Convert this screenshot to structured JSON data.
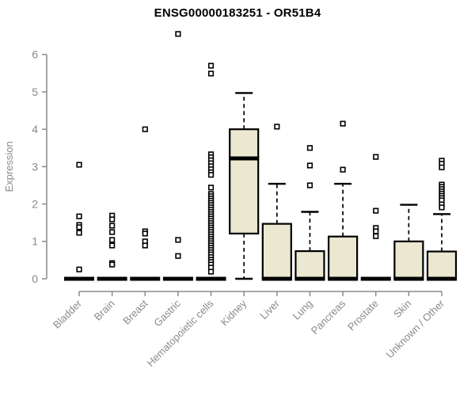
{
  "title": "ENSG00000183251 - OR51B4",
  "colors": {
    "background": "#ffffff",
    "box_fill": "#ece7d0",
    "box_stroke": "#000000",
    "median": "#000000",
    "whisker": "#000000",
    "outlier_stroke": "#000000",
    "outlier_fill": "#ffffff",
    "axis": "#8c8c8c",
    "tick_label": "#8a8a8a",
    "title": "#000000"
  },
  "chart_data": {
    "type": "boxplot",
    "title": "ENSG00000183251 - OR51B4",
    "xlabel": "",
    "ylabel": "Expression",
    "ylim": [
      0,
      6.6
    ],
    "yticks": [
      0,
      1,
      2,
      3,
      4,
      5,
      6
    ],
    "grid": false,
    "legend": "none",
    "categories": [
      "Bladder",
      "Brain",
      "Breast",
      "Gastric",
      "Hematopoietic cells",
      "Kidney",
      "Liver",
      "Lung",
      "Pancreas",
      "Prostate",
      "Skin",
      "Unknown / Other"
    ],
    "series": [
      {
        "name": "Bladder",
        "q1": 0,
        "median": 0,
        "q3": 0,
        "whisker_low": 0,
        "whisker_high": 0,
        "outliers": [
          3.05,
          1.67,
          1.44,
          1.38,
          1.23,
          0.25
        ]
      },
      {
        "name": "Brain",
        "q1": 0,
        "median": 0,
        "q3": 0,
        "whisker_low": 0,
        "whisker_high": 0,
        "outliers": [
          1.69,
          1.59,
          1.42,
          1.25,
          1.04,
          0.89,
          0.42,
          0.38
        ]
      },
      {
        "name": "Breast",
        "q1": 0,
        "median": 0,
        "q3": 0,
        "whisker_low": 0,
        "whisker_high": 0,
        "outliers": [
          4.0,
          1.27,
          1.21,
          1.0,
          0.89
        ]
      },
      {
        "name": "Gastric",
        "q1": 0,
        "median": 0,
        "q3": 0,
        "whisker_low": 0,
        "whisker_high": 0,
        "outliers": [
          6.55,
          1.04,
          0.61
        ]
      },
      {
        "name": "Hematopoietic cells",
        "q1": 0,
        "median": 0,
        "q3": 0,
        "whisker_low": 0,
        "whisker_high": 0,
        "outliers": [
          5.7,
          5.49,
          3.33,
          3.25,
          3.17,
          3.09,
          3.01,
          2.93,
          2.85,
          2.78,
          2.44,
          2.27,
          2.21,
          2.15,
          2.09,
          2.03,
          1.97,
          1.91,
          1.85,
          1.79,
          1.73,
          1.67,
          1.61,
          1.55,
          1.49,
          1.43,
          1.37,
          1.31,
          1.25,
          1.19,
          1.13,
          1.07,
          1.01,
          0.95,
          0.89,
          0.83,
          0.77,
          0.71,
          0.65,
          0.58,
          0.51,
          0.45,
          0.38,
          0.3,
          0.19
        ]
      },
      {
        "name": "Kidney",
        "q1": 1.21,
        "median": 3.22,
        "q3": 4.0,
        "whisker_low": 0,
        "whisker_high": 4.97,
        "outliers": []
      },
      {
        "name": "Liver",
        "q1": 0,
        "median": 0,
        "q3": 1.47,
        "whisker_low": 0,
        "whisker_high": 2.54,
        "outliers": [
          4.07
        ]
      },
      {
        "name": "Lung",
        "q1": 0,
        "median": 0,
        "q3": 0.74,
        "whisker_low": 0,
        "whisker_high": 1.79,
        "outliers": [
          3.5,
          3.03,
          2.5
        ]
      },
      {
        "name": "Pancreas",
        "q1": 0,
        "median": 0,
        "q3": 1.13,
        "whisker_low": 0,
        "whisker_high": 2.54,
        "outliers": [
          4.15,
          2.92
        ]
      },
      {
        "name": "Prostate",
        "q1": 0,
        "median": 0,
        "q3": 0,
        "whisker_low": 0,
        "whisker_high": 0,
        "outliers": [
          3.26,
          1.82,
          1.36,
          1.27,
          1.14
        ]
      },
      {
        "name": "Skin",
        "q1": 0,
        "median": 0,
        "q3": 1.0,
        "whisker_low": 0,
        "whisker_high": 1.98,
        "outliers": []
      },
      {
        "name": "Unknown / Other",
        "q1": 0,
        "median": 0,
        "q3": 0.73,
        "whisker_low": 0,
        "whisker_high": 1.73,
        "outliers": [
          3.16,
          3.08,
          2.98,
          2.52,
          2.46,
          2.4,
          2.34,
          2.28,
          2.22,
          2.16,
          2.1,
          1.99,
          1.91
        ]
      }
    ]
  }
}
